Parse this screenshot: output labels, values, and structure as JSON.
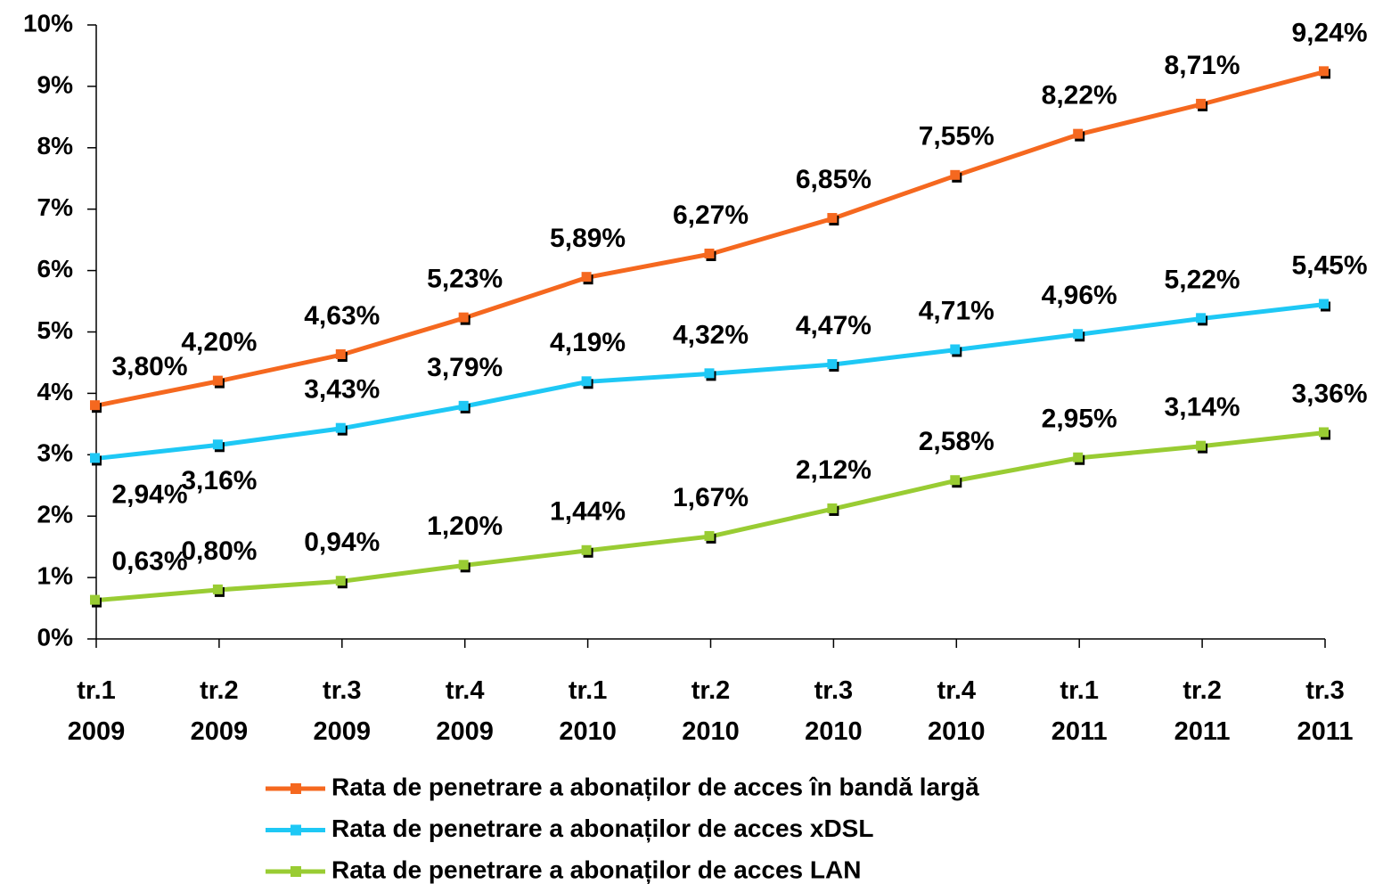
{
  "chart_data": {
    "type": "line",
    "categories": [
      "tr.1\n2009",
      "tr.2\n2009",
      "tr.3\n2009",
      "tr.4\n2009",
      "tr.1\n2010",
      "tr.2\n2010",
      "tr.3\n2010",
      "tr.4\n2010",
      "tr.1\n2011",
      "tr.2\n2011",
      "tr.3\n2011"
    ],
    "series": [
      {
        "name": "Rata de penetrare a abonaților de acces în bandă largă",
        "color": "#f5681f",
        "values": [
          3.8,
          4.2,
          4.63,
          5.23,
          5.89,
          6.27,
          6.85,
          7.55,
          8.22,
          8.71,
          9.24
        ],
        "value_labels": [
          "3,80%",
          "4,20%",
          "4,63%",
          "5,23%",
          "5,89%",
          "6,27%",
          "6,85%",
          "7,55%",
          "8,22%",
          "8,71%",
          "9,24%"
        ]
      },
      {
        "name": "Rata de penetrare a abonaților de acces xDSL",
        "color": "#1ec8f5",
        "values": [
          2.94,
          3.16,
          3.43,
          3.79,
          4.19,
          4.32,
          4.47,
          4.71,
          4.96,
          5.22,
          5.45
        ],
        "value_labels": [
          "2,94%",
          "3,16%",
          "3,43%",
          "3,79%",
          "4,19%",
          "4,32%",
          "4,47%",
          "4,71%",
          "4,96%",
          "5,22%",
          "5,45%"
        ]
      },
      {
        "name": "Rata de penetrare a abonaților de acces LAN",
        "color": "#99cc33",
        "values": [
          0.63,
          0.8,
          0.94,
          1.2,
          1.44,
          1.67,
          2.12,
          2.58,
          2.95,
          3.14,
          3.36
        ],
        "value_labels": [
          "0,63%",
          "0,80%",
          "0,94%",
          "1,20%",
          "1,44%",
          "1,67%",
          "2,12%",
          "2,58%",
          "2,95%",
          "3,14%",
          "3,36%"
        ]
      }
    ],
    "ylim": [
      0,
      10
    ],
    "yticks": [
      {
        "value": 0,
        "label": "0%"
      },
      {
        "value": 1,
        "label": "1%"
      },
      {
        "value": 2,
        "label": "2%"
      },
      {
        "value": 3,
        "label": "3%"
      },
      {
        "value": 4,
        "label": "4%"
      },
      {
        "value": 5,
        "label": "5%"
      },
      {
        "value": 6,
        "label": "6%"
      },
      {
        "value": 7,
        "label": "7%"
      },
      {
        "value": 8,
        "label": "8%"
      },
      {
        "value": 9,
        "label": "9%"
      },
      {
        "value": 10,
        "label": "10%"
      }
    ],
    "grid": false,
    "legend": "bottom"
  }
}
